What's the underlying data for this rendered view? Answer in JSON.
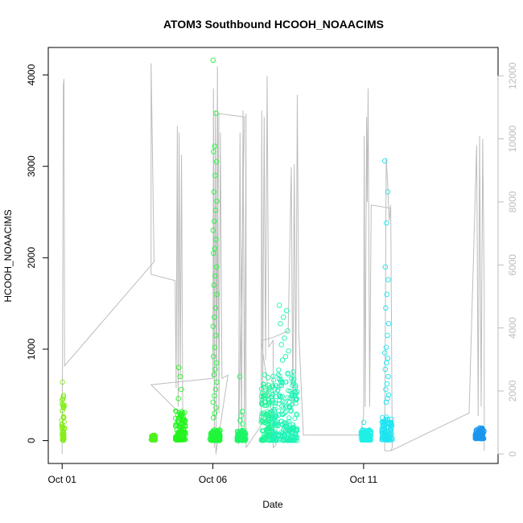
{
  "chart_data": {
    "type": "scatter",
    "title": "ATOM3 Southbound HCOOH_NOAACIMS",
    "xlabel": "Date",
    "ylabel": "HCOOH_NOAACIMS",
    "x_ticks": [
      {
        "value": 1,
        "label": "Oct 01"
      },
      {
        "value": 6,
        "label": "Oct 06"
      },
      {
        "value": 11,
        "label": "Oct 11"
      }
    ],
    "y_ticks": [
      0,
      1000,
      2000,
      3000,
      4000
    ],
    "y2_ticks": [
      0,
      2000,
      4000,
      6000,
      8000,
      10000,
      12000
    ],
    "xlim": [
      0.54,
      15.46
    ],
    "ylim": [
      -250,
      4300
    ],
    "y2lim": [
      -300,
      12900
    ],
    "grid": false,
    "secondary_color": "#bdbdbd",
    "flights": [
      {
        "x0": 0.98,
        "x1": 1.08,
        "base": 10,
        "low": 0,
        "high": 500,
        "outliers": [
          640,
          480
        ],
        "color": "#84ee1a"
      },
      {
        "x0": 3.95,
        "x1": 4.1,
        "base": 10,
        "low": 5,
        "high": 60,
        "outliers": [],
        "color": "#4ef21c"
      },
      {
        "x0": 4.75,
        "x1": 5.1,
        "base": 20,
        "low": 5,
        "high": 330,
        "outliers": [
          460,
          560,
          700,
          800
        ],
        "color": "#22f41d"
      },
      {
        "x0": 5.9,
        "x1": 6.25,
        "base": 20,
        "low": 0,
        "high": 120,
        "outliers": [
          4160,
          3580,
          3220,
          3160,
          3050,
          2900,
          2720,
          2620,
          2520,
          2400,
          2300,
          2200,
          2100,
          2050,
          1900,
          1800,
          1700,
          1600,
          1450,
          1350,
          1250,
          1150,
          1020,
          920,
          850,
          780,
          720,
          640,
          560,
          490,
          420,
          360,
          300,
          250
        ],
        "color": "#1ff73a"
      },
      {
        "x0": 6.8,
        "x1": 7.1,
        "base": 10,
        "low": 0,
        "high": 120,
        "outliers": [
          700,
          320,
          270,
          220,
          180
        ],
        "color": "#1df666"
      },
      {
        "x0": 7.6,
        "x1": 8.0,
        "base": 20,
        "low": 0,
        "high": 650,
        "outliers": [
          720,
          690
        ],
        "color": "#1df598"
      },
      {
        "x0": 7.95,
        "x1": 8.8,
        "base": 20,
        "low": 0,
        "high": 780,
        "outliers": [
          1480,
          1420,
          1350,
          1280,
          1200,
          1120,
          1050,
          980,
          920,
          880
        ],
        "color": "#1df3b4"
      },
      {
        "x0": 10.9,
        "x1": 11.25,
        "base": 20,
        "low": 5,
        "high": 120,
        "outliers": [
          200
        ],
        "color": "#1ff0e6"
      },
      {
        "x0": 11.6,
        "x1": 11.95,
        "base": 10,
        "low": 5,
        "high": 260,
        "outliers": [
          3060,
          2720,
          2380,
          1900,
          1760,
          1600,
          1450,
          1280,
          1150,
          1020,
          960,
          900,
          850,
          780,
          700,
          620,
          560,
          500,
          460,
          420
        ],
        "color": "#1fe4f2"
      },
      {
        "x0": 14.7,
        "x1": 15.0,
        "base": 20,
        "low": 20,
        "high": 140,
        "outliers": [],
        "color": "#1a96ee"
      }
    ],
    "secondary_series": [
      [
        [
          1.0,
          0
        ],
        [
          1.02,
          5200
        ],
        [
          1.04,
          11700
        ],
        [
          1.06,
          11900
        ],
        [
          1.08,
          2800
        ],
        [
          4.05,
          6100
        ],
        [
          3.95,
          12400
        ],
        [
          3.95,
          5700
        ],
        [
          4.75,
          5500
        ],
        [
          4.78,
          2100
        ],
        [
          4.82,
          10400
        ],
        [
          4.85,
          1500
        ],
        [
          4.88,
          10200
        ],
        [
          4.92,
          2400
        ],
        [
          4.96,
          9500
        ],
        [
          5.0,
          1200
        ],
        [
          3.95,
          2200
        ],
        [
          6.0,
          2400
        ],
        [
          6.02,
          11600
        ],
        [
          6.05,
          200
        ],
        [
          6.08,
          10900
        ],
        [
          6.12,
          1200
        ],
        [
          6.15,
          12300
        ],
        [
          6.2,
          1300
        ],
        [
          6.25,
          10200
        ],
        [
          6.3,
          2400
        ],
        [
          6.5,
          2500
        ],
        [
          6.1,
          0
        ],
        [
          6.2,
          10800
        ],
        [
          7.05,
          10700
        ],
        [
          6.85,
          300
        ],
        [
          6.9,
          10200
        ],
        [
          6.95,
          400
        ],
        [
          7.0,
          10900
        ],
        [
          7.05,
          600
        ],
        [
          7.1,
          10800
        ],
        [
          7.1,
          200
        ]
      ],
      [
        [
          7.1,
          200
        ],
        [
          7.6,
          900
        ],
        [
          7.62,
          10900
        ],
        [
          7.65,
          1500
        ],
        [
          7.7,
          10700
        ],
        [
          7.75,
          3000
        ],
        [
          7.8,
          12000
        ],
        [
          7.85,
          3400
        ],
        [
          8.0,
          3600
        ],
        [
          8.0,
          200
        ],
        [
          8.1,
          300
        ],
        [
          7.6,
          3600
        ],
        [
          8.0,
          3700
        ],
        [
          8.5,
          3900
        ],
        [
          8.6,
          9100
        ],
        [
          8.65,
          1500
        ],
        [
          8.7,
          9200
        ],
        [
          8.75,
          2000
        ],
        [
          8.8,
          11400
        ],
        [
          8.85,
          3900
        ]
      ],
      [
        [
          8.85,
          3900
        ],
        [
          9.0,
          600
        ],
        [
          10.9,
          600
        ],
        [
          11.0,
          1200
        ],
        [
          11.02,
          10100
        ],
        [
          11.05,
          1500
        ],
        [
          11.1,
          10700
        ],
        [
          11.12,
          8000
        ],
        [
          11.15,
          11600
        ],
        [
          11.2,
          1500
        ],
        [
          11.25,
          7900
        ],
        [
          11.9,
          7800
        ],
        [
          11.95,
          200
        ],
        [
          11.9,
          100
        ],
        [
          11.7,
          100
        ],
        [
          11.75,
          9400
        ],
        [
          11.8,
          8500
        ],
        [
          11.85,
          7400
        ],
        [
          11.9,
          7900
        ]
      ],
      [
        [
          11.9,
          100
        ],
        [
          14.5,
          1300
        ],
        [
          14.75,
          9800
        ],
        [
          14.8,
          1200
        ],
        [
          14.85,
          10100
        ],
        [
          14.9,
          1500
        ],
        [
          14.95,
          10000
        ],
        [
          15.0,
          5200
        ],
        [
          15.0,
          100
        ]
      ]
    ]
  }
}
